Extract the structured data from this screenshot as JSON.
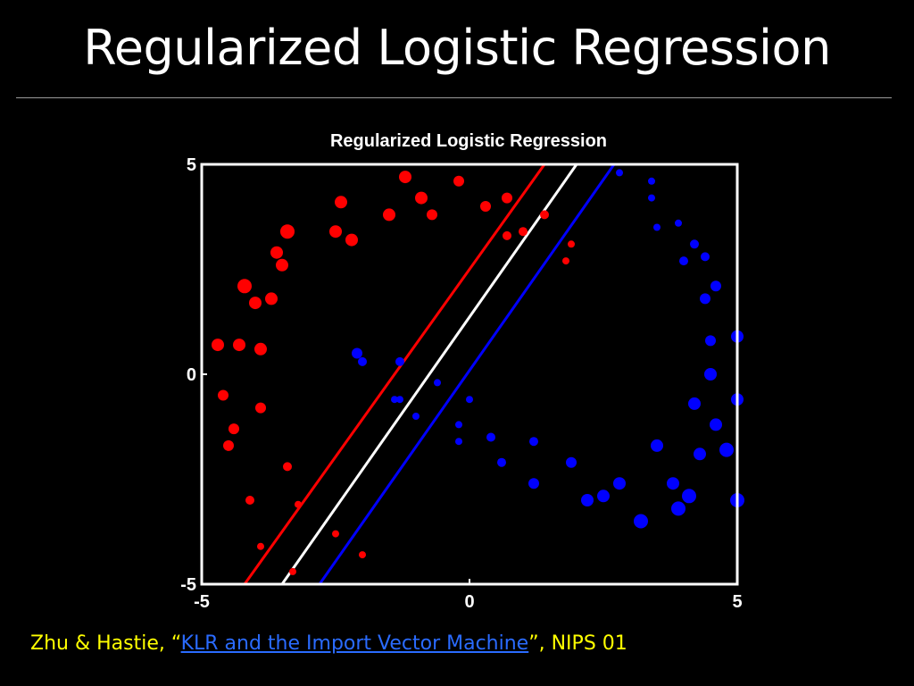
{
  "slide": {
    "title": "Regularized Logistic Regression"
  },
  "citation": {
    "prefix": "Zhu & Hastie, “",
    "link_text": "KLR and the Import Vector Machine",
    "suffix": "”, NIPS 01",
    "color": "#ffff00",
    "link_color": "#2a6bff"
  },
  "chart_data": {
    "type": "scatter",
    "title": "Regularized Logistic Regression",
    "xlabel": "",
    "ylabel": "",
    "xlim": [
      -5,
      5
    ],
    "ylim": [
      -5,
      5
    ],
    "xticks": [
      "-5",
      "0",
      "5"
    ],
    "yticks": [
      "5",
      "0",
      "-5"
    ],
    "grid": false,
    "background": "#000000",
    "axis_color": "#ffffff",
    "series": [
      {
        "color": "#ff0000",
        "points": [
          [
            -4.7,
            0.7,
            7
          ],
          [
            -4.3,
            0.7,
            7
          ],
          [
            -4.0,
            1.7,
            7
          ],
          [
            -3.7,
            1.8,
            7
          ],
          [
            -4.2,
            2.1,
            8
          ],
          [
            -3.9,
            0.6,
            7
          ],
          [
            -3.5,
            2.6,
            7
          ],
          [
            -3.6,
            2.9,
            7
          ],
          [
            -3.4,
            3.4,
            8
          ],
          [
            -2.5,
            3.4,
            7
          ],
          [
            -2.2,
            3.2,
            7
          ],
          [
            -2.4,
            4.1,
            7
          ],
          [
            -1.5,
            3.8,
            7
          ],
          [
            -1.2,
            4.7,
            7
          ],
          [
            -0.9,
            4.2,
            7
          ],
          [
            -0.7,
            3.8,
            6
          ],
          [
            -0.2,
            4.6,
            6
          ],
          [
            0.3,
            4.0,
            6
          ],
          [
            0.7,
            4.2,
            6
          ],
          [
            0.7,
            3.3,
            5
          ],
          [
            1.0,
            3.4,
            5
          ],
          [
            1.4,
            3.8,
            5
          ],
          [
            1.9,
            3.1,
            4
          ],
          [
            1.8,
            2.7,
            4
          ],
          [
            -4.6,
            -0.5,
            6
          ],
          [
            -4.4,
            -1.3,
            6
          ],
          [
            -4.5,
            -1.7,
            6
          ],
          [
            -3.9,
            -0.8,
            6
          ],
          [
            -3.4,
            -2.2,
            5
          ],
          [
            -4.1,
            -3.0,
            5
          ],
          [
            -3.2,
            -3.1,
            4
          ],
          [
            -3.9,
            -4.1,
            4
          ],
          [
            -2.5,
            -3.8,
            4
          ],
          [
            -2.0,
            -4.3,
            4
          ],
          [
            -3.3,
            -4.7,
            4
          ]
        ]
      },
      {
        "color": "#0000ff",
        "points": [
          [
            2.8,
            4.8,
            4
          ],
          [
            3.4,
            4.6,
            4
          ],
          [
            3.4,
            4.2,
            4
          ],
          [
            3.5,
            3.5,
            4
          ],
          [
            3.9,
            3.6,
            4
          ],
          [
            4.2,
            3.1,
            5
          ],
          [
            4.0,
            2.7,
            5
          ],
          [
            4.4,
            2.8,
            5
          ],
          [
            4.6,
            2.1,
            6
          ],
          [
            4.4,
            1.8,
            6
          ],
          [
            4.5,
            0.8,
            6
          ],
          [
            5.0,
            0.9,
            7
          ],
          [
            4.5,
            0.0,
            7
          ],
          [
            5.0,
            -0.6,
            7
          ],
          [
            4.2,
            -0.7,
            7
          ],
          [
            4.6,
            -1.2,
            7
          ],
          [
            4.8,
            -1.8,
            8
          ],
          [
            4.3,
            -1.9,
            7
          ],
          [
            3.5,
            -1.7,
            7
          ],
          [
            3.8,
            -2.6,
            7
          ],
          [
            4.1,
            -2.9,
            8
          ],
          [
            3.9,
            -3.2,
            8
          ],
          [
            5.0,
            -3.0,
            8
          ],
          [
            3.2,
            -3.5,
            8
          ],
          [
            2.8,
            -2.6,
            7
          ],
          [
            2.5,
            -2.9,
            7
          ],
          [
            2.2,
            -3.0,
            7
          ],
          [
            1.9,
            -2.1,
            6
          ],
          [
            1.2,
            -1.6,
            5
          ],
          [
            1.2,
            -2.6,
            6
          ],
          [
            0.6,
            -2.1,
            5
          ],
          [
            0.4,
            -1.5,
            5
          ],
          [
            -0.2,
            -1.6,
            4
          ],
          [
            -0.2,
            -1.2,
            4
          ],
          [
            0.0,
            -0.6,
            4
          ],
          [
            -2.1,
            0.5,
            6
          ],
          [
            -2.0,
            0.3,
            5
          ],
          [
            -1.3,
            0.3,
            5
          ],
          [
            -1.3,
            -0.6,
            4
          ],
          [
            -1.4,
            -0.6,
            4
          ],
          [
            -0.6,
            -0.2,
            4
          ],
          [
            -1.0,
            -1.0,
            4
          ]
        ]
      }
    ],
    "lines": [
      {
        "color": "#ff0000",
        "from": [
          -4.2,
          -5
        ],
        "to": [
          1.4,
          5
        ]
      },
      {
        "color": "#ffffff",
        "from": [
          -3.5,
          -5
        ],
        "to": [
          2.0,
          5
        ]
      },
      {
        "color": "#0000ff",
        "from": [
          -2.8,
          -5
        ],
        "to": [
          2.7,
          5
        ]
      }
    ]
  }
}
